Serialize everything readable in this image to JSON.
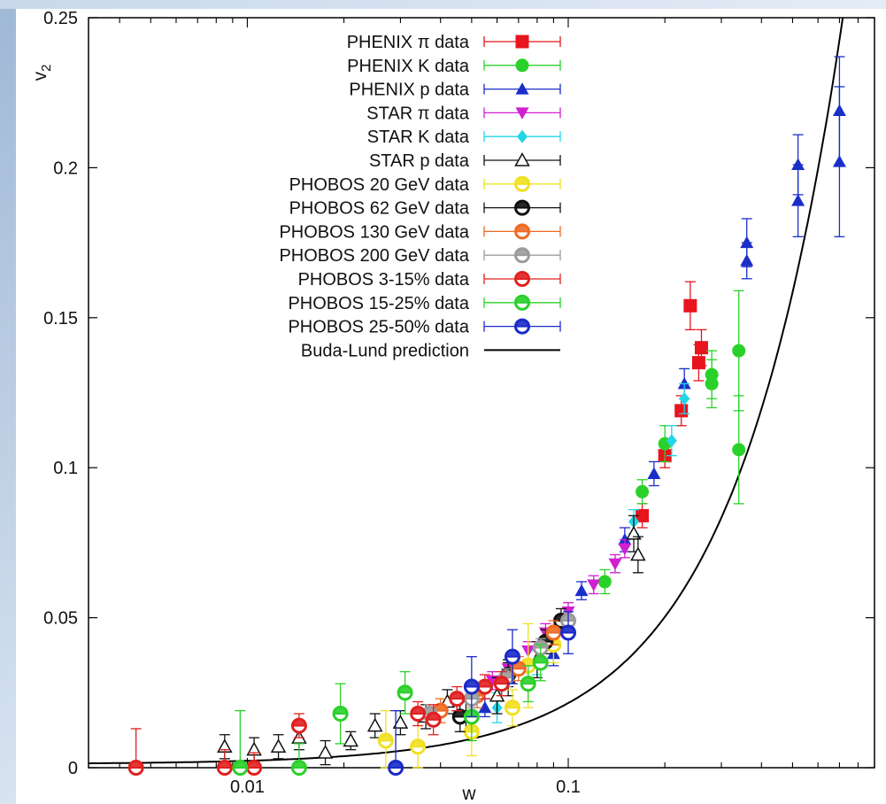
{
  "chart_data": {
    "type": "scatter",
    "title": "",
    "xlabel": "w",
    "ylabel": "v",
    "ylabel_subscript": "2",
    "x_scale": "log",
    "xlim": [
      0.0032,
      0.9
    ],
    "ylim": [
      0,
      0.25
    ],
    "x_ticks": [
      0.01,
      0.1
    ],
    "x_tick_labels": [
      "0.01",
      "0.1"
    ],
    "y_ticks": [
      0,
      0.05,
      0.1,
      0.15,
      0.2,
      0.25
    ],
    "y_tick_labels": [
      "0",
      "0.05",
      "0.1",
      "0.15",
      "0.2",
      "0.25"
    ],
    "grid": false,
    "legend_position": "top-center",
    "series": [
      {
        "name": "PHENIX π data",
        "marker": "square",
        "color": "#e8141e",
        "points": [
          [
            0.24,
            0.154,
            0.008
          ],
          [
            0.26,
            0.14,
            0.006
          ],
          [
            0.255,
            0.135,
            0.006
          ],
          [
            0.17,
            0.084,
            0.004
          ],
          [
            0.2,
            0.104,
            0.004
          ],
          [
            0.225,
            0.119,
            0.005
          ]
        ]
      },
      {
        "name": "PHENIX K data",
        "marker": "circle",
        "color": "#2bd12b",
        "points": [
          [
            0.28,
            0.131,
            0.008
          ],
          [
            0.28,
            0.128,
            0.008
          ],
          [
            0.34,
            0.139,
            0.02
          ],
          [
            0.34,
            0.106,
            0.018
          ],
          [
            0.2,
            0.108,
            0.006
          ],
          [
            0.17,
            0.092,
            0.004
          ],
          [
            0.13,
            0.062,
            0.004
          ]
        ]
      },
      {
        "name": "PHENIX p data",
        "marker": "triangle-up",
        "color": "#1a2fc8",
        "points": [
          [
            0.52,
            0.201,
            0.01
          ],
          [
            0.52,
            0.189,
            0.012
          ],
          [
            0.7,
            0.219,
            0.018
          ],
          [
            0.7,
            0.202,
            0.025
          ],
          [
            0.36,
            0.175,
            0.008
          ],
          [
            0.36,
            0.169,
            0.006
          ],
          [
            0.23,
            0.128,
            0.005
          ],
          [
            0.185,
            0.098,
            0.004
          ],
          [
            0.15,
            0.076,
            0.004
          ],
          [
            0.11,
            0.059,
            0.003
          ],
          [
            0.09,
            0.038,
            0.004
          ],
          [
            0.055,
            0.02,
            0.003
          ]
        ]
      },
      {
        "name": "STAR π data",
        "marker": "triangle-down",
        "color": "#d020d0",
        "points": [
          [
            0.14,
            0.068,
            0.003
          ],
          [
            0.15,
            0.073,
            0.003
          ],
          [
            0.12,
            0.061,
            0.003
          ],
          [
            0.1,
            0.052,
            0.003
          ],
          [
            0.085,
            0.045,
            0.003
          ],
          [
            0.075,
            0.039,
            0.003
          ],
          [
            0.065,
            0.033,
            0.003
          ],
          [
            0.058,
            0.029,
            0.003
          ],
          [
            0.05,
            0.025,
            0.003
          ],
          [
            0.045,
            0.022,
            0.003
          ]
        ]
      },
      {
        "name": "STAR K data",
        "marker": "diamond",
        "color": "#22d6e8",
        "points": [
          [
            0.06,
            0.02,
            0.005
          ],
          [
            0.08,
            0.035,
            0.004
          ],
          [
            0.16,
            0.082,
            0.004
          ],
          [
            0.21,
            0.109,
            0.005
          ],
          [
            0.23,
            0.123,
            0.005
          ]
        ]
      },
      {
        "name": "STAR p data",
        "marker": "open-triangle",
        "color": "#111111",
        "points": [
          [
            0.0085,
            0.007,
            0.004
          ],
          [
            0.0105,
            0.006,
            0.004
          ],
          [
            0.0125,
            0.007,
            0.004
          ],
          [
            0.0145,
            0.01,
            0.004
          ],
          [
            0.0175,
            0.005,
            0.004
          ],
          [
            0.021,
            0.009,
            0.003
          ],
          [
            0.025,
            0.014,
            0.004
          ],
          [
            0.03,
            0.015,
            0.004
          ],
          [
            0.036,
            0.017,
            0.004
          ],
          [
            0.042,
            0.022,
            0.004
          ],
          [
            0.048,
            0.017,
            0.005
          ],
          [
            0.06,
            0.024,
            0.006
          ],
          [
            0.065,
            0.03,
            0.006
          ],
          [
            0.08,
            0.036,
            0.006
          ],
          [
            0.16,
            0.078,
            0.006
          ],
          [
            0.165,
            0.071,
            0.006
          ]
        ]
      },
      {
        "name": "PHOBOS 20 GeV data",
        "marker": "open-circle",
        "color": "#f0e020",
        "points": [
          [
            0.027,
            0.009,
            0.01
          ],
          [
            0.034,
            0.007,
            0.012
          ],
          [
            0.05,
            0.012,
            0.008
          ],
          [
            0.067,
            0.02,
            0.006
          ],
          [
            0.075,
            0.034,
            0.014
          ],
          [
            0.09,
            0.041,
            0.006
          ]
        ]
      },
      {
        "name": "PHOBOS 62 GeV data",
        "marker": "open-circle",
        "color": "#111111",
        "points": [
          [
            0.046,
            0.017,
            0.005
          ],
          [
            0.065,
            0.031,
            0.004
          ],
          [
            0.085,
            0.042,
            0.004
          ],
          [
            0.095,
            0.049,
            0.004
          ]
        ]
      },
      {
        "name": "PHOBOS 130 GeV data",
        "marker": "open-circle",
        "color": "#ee6a22",
        "points": [
          [
            0.04,
            0.019,
            0.004
          ],
          [
            0.052,
            0.024,
            0.004
          ],
          [
            0.07,
            0.033,
            0.004
          ],
          [
            0.09,
            0.045,
            0.004
          ]
        ]
      },
      {
        "name": "PHOBOS 200 GeV data",
        "marker": "open-circle",
        "color": "#9b9b9b",
        "points": [
          [
            0.037,
            0.018,
            0.003
          ],
          [
            0.05,
            0.023,
            0.003
          ],
          [
            0.064,
            0.03,
            0.003
          ],
          [
            0.082,
            0.04,
            0.003
          ],
          [
            0.1,
            0.049,
            0.003
          ]
        ]
      },
      {
        "name": "PHOBOS 3-15% data",
        "marker": "open-circle",
        "color": "#e02020",
        "points": [
          [
            0.0045,
            0.0,
            0.013
          ],
          [
            0.0085,
            0.0,
            0.006
          ],
          [
            0.0105,
            0.0,
            0.005
          ],
          [
            0.0145,
            0.014,
            0.004
          ],
          [
            0.034,
            0.018,
            0.004
          ],
          [
            0.038,
            0.016,
            0.005
          ],
          [
            0.045,
            0.023,
            0.004
          ],
          [
            0.055,
            0.027,
            0.004
          ],
          [
            0.062,
            0.028,
            0.004
          ]
        ]
      },
      {
        "name": "PHOBOS 15-25% data",
        "marker": "open-circle",
        "color": "#2ad02a",
        "points": [
          [
            0.0095,
            0.0,
            0.019
          ],
          [
            0.0145,
            0.0,
            0.008
          ],
          [
            0.0195,
            0.018,
            0.01
          ],
          [
            0.031,
            0.025,
            0.007
          ],
          [
            0.05,
            0.017,
            0.008
          ],
          [
            0.075,
            0.028,
            0.006
          ],
          [
            0.082,
            0.035,
            0.006
          ]
        ]
      },
      {
        "name": "PHOBOS 25-50% data",
        "marker": "open-circle",
        "color": "#1a2ac8",
        "points": [
          [
            0.029,
            0.0,
            0.019
          ],
          [
            0.05,
            0.027,
            0.01
          ],
          [
            0.067,
            0.037,
            0.009
          ],
          [
            0.1,
            0.045,
            0.007
          ]
        ]
      }
    ],
    "prediction": {
      "name": "Buda-Lund prediction",
      "color": "#000000",
      "sample_x": [
        0.0032,
        0.005,
        0.008,
        0.012,
        0.02,
        0.03,
        0.05,
        0.07,
        0.1,
        0.15,
        0.2,
        0.3,
        0.4,
        0.5,
        0.55
      ]
    }
  }
}
